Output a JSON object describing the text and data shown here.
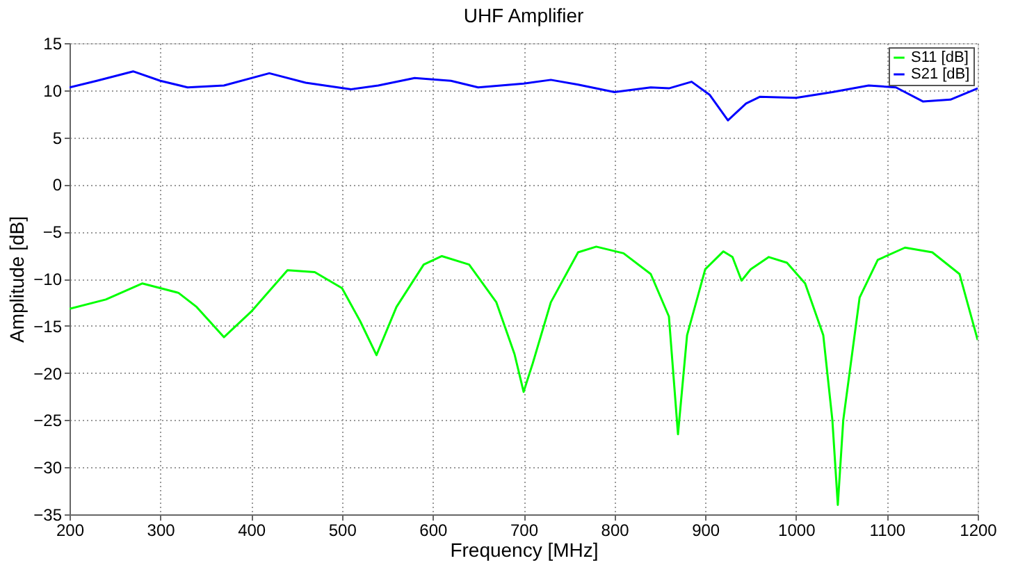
{
  "chart_data": {
    "type": "line",
    "title": "UHF Amplifier",
    "xlabel": "Frequency [MHz]",
    "ylabel": "Amplitude [dB]",
    "xlim": [
      200,
      1200
    ],
    "xticks": [
      200,
      300,
      400,
      500,
      600,
      700,
      800,
      900,
      1000,
      1100,
      1200
    ],
    "ylim": [
      -35,
      15
    ],
    "yticks": [
      -35,
      -30,
      -25,
      -20,
      -15,
      -10,
      -5,
      0,
      5,
      10,
      15
    ],
    "grid": true,
    "legend": "top right",
    "line_style": "solid",
    "marker": "none",
    "series": [
      {
        "name": "S11 [dB]",
        "color": "#00ff00",
        "x": [
          200,
          240,
          280,
          320,
          340,
          370,
          400,
          440,
          470,
          500,
          520,
          538,
          560,
          590,
          610,
          640,
          670,
          690,
          700,
          710,
          730,
          760,
          780,
          810,
          840,
          860,
          870,
          880,
          900,
          920,
          930,
          940,
          950,
          970,
          990,
          1010,
          1030,
          1040,
          1046,
          1052,
          1070,
          1090,
          1120,
          1150,
          1180,
          1200
        ],
        "values": [
          -13.2,
          -12.2,
          -10.5,
          -11.5,
          -13,
          -16.2,
          -13.5,
          -9.1,
          -9.3,
          -11,
          -14.5,
          -18.1,
          -13,
          -8.5,
          -7.6,
          -8.5,
          -12.5,
          -18,
          -22,
          -19,
          -12.5,
          -7.2,
          -6.6,
          -7.3,
          -9.5,
          -14,
          -26.5,
          -16,
          -9,
          -7.1,
          -7.7,
          -10.2,
          -9,
          -7.7,
          -8.3,
          -10.5,
          -16,
          -25,
          -34,
          -25,
          -12,
          -8,
          -6.7,
          -7.2,
          -9.5,
          -16.5
        ]
      },
      {
        "name": "S21 [dB]",
        "color": "#0000ff",
        "x": [
          200,
          230,
          270,
          300,
          330,
          370,
          420,
          460,
          510,
          540,
          580,
          620,
          650,
          700,
          730,
          760,
          800,
          840,
          860,
          885,
          905,
          925,
          945,
          960,
          1000,
          1040,
          1080,
          1110,
          1140,
          1170,
          1200
        ],
        "values": [
          10.3,
          11,
          12,
          11,
          10.3,
          10.5,
          11.8,
          10.8,
          10.1,
          10.5,
          11.3,
          11,
          10.3,
          10.7,
          11.1,
          10.6,
          9.8,
          10.3,
          10.2,
          10.9,
          9.5,
          6.8,
          8.6,
          9.3,
          9.2,
          9.8,
          10.5,
          10.3,
          8.8,
          9,
          10.2
        ]
      }
    ]
  }
}
